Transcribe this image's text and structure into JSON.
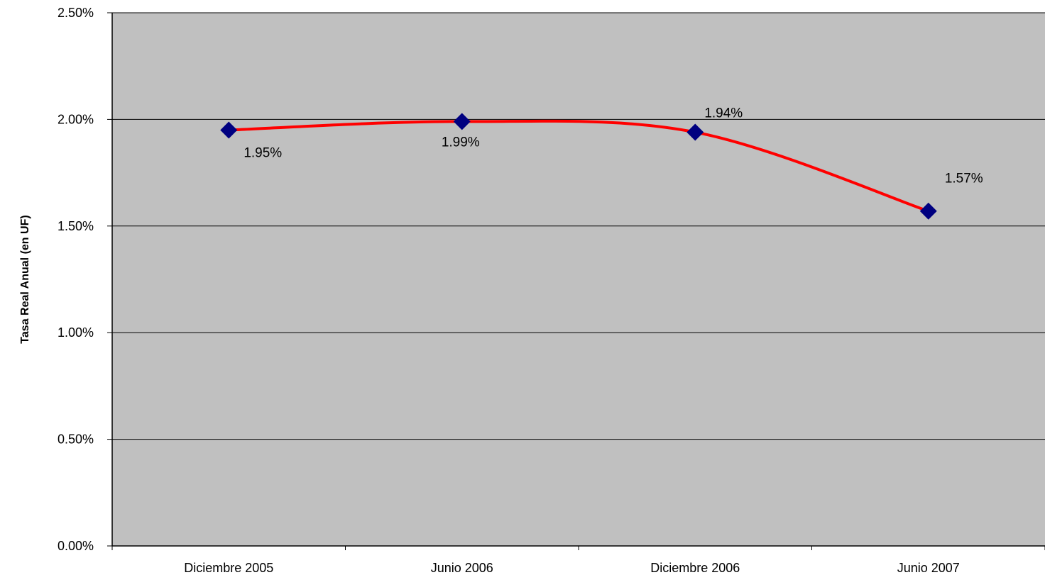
{
  "chart_data": {
    "type": "line",
    "title": "",
    "xlabel": "",
    "ylabel": "Tasa Real Anual (en UF)",
    "categories": [
      "Diciembre 2005",
      "Junio 2006",
      "Diciembre 2006",
      "Junio 2007"
    ],
    "series": [
      {
        "values": [
          0.0195,
          0.0199,
          0.0194,
          0.0157
        ],
        "labels": [
          "1.95%",
          "1.99%",
          "1.94%",
          "1.57%"
        ]
      }
    ],
    "y_ticks": [
      "0.00%",
      "0.50%",
      "1.00%",
      "1.50%",
      "2.00%",
      "2.50%"
    ],
    "ylim": [
      0,
      0.025
    ],
    "grid": true,
    "legend": "none",
    "colors": {
      "plot_background": "#c0c0c0",
      "line": "#ff0000",
      "marker": "#000080",
      "gridline": "#000000"
    }
  }
}
